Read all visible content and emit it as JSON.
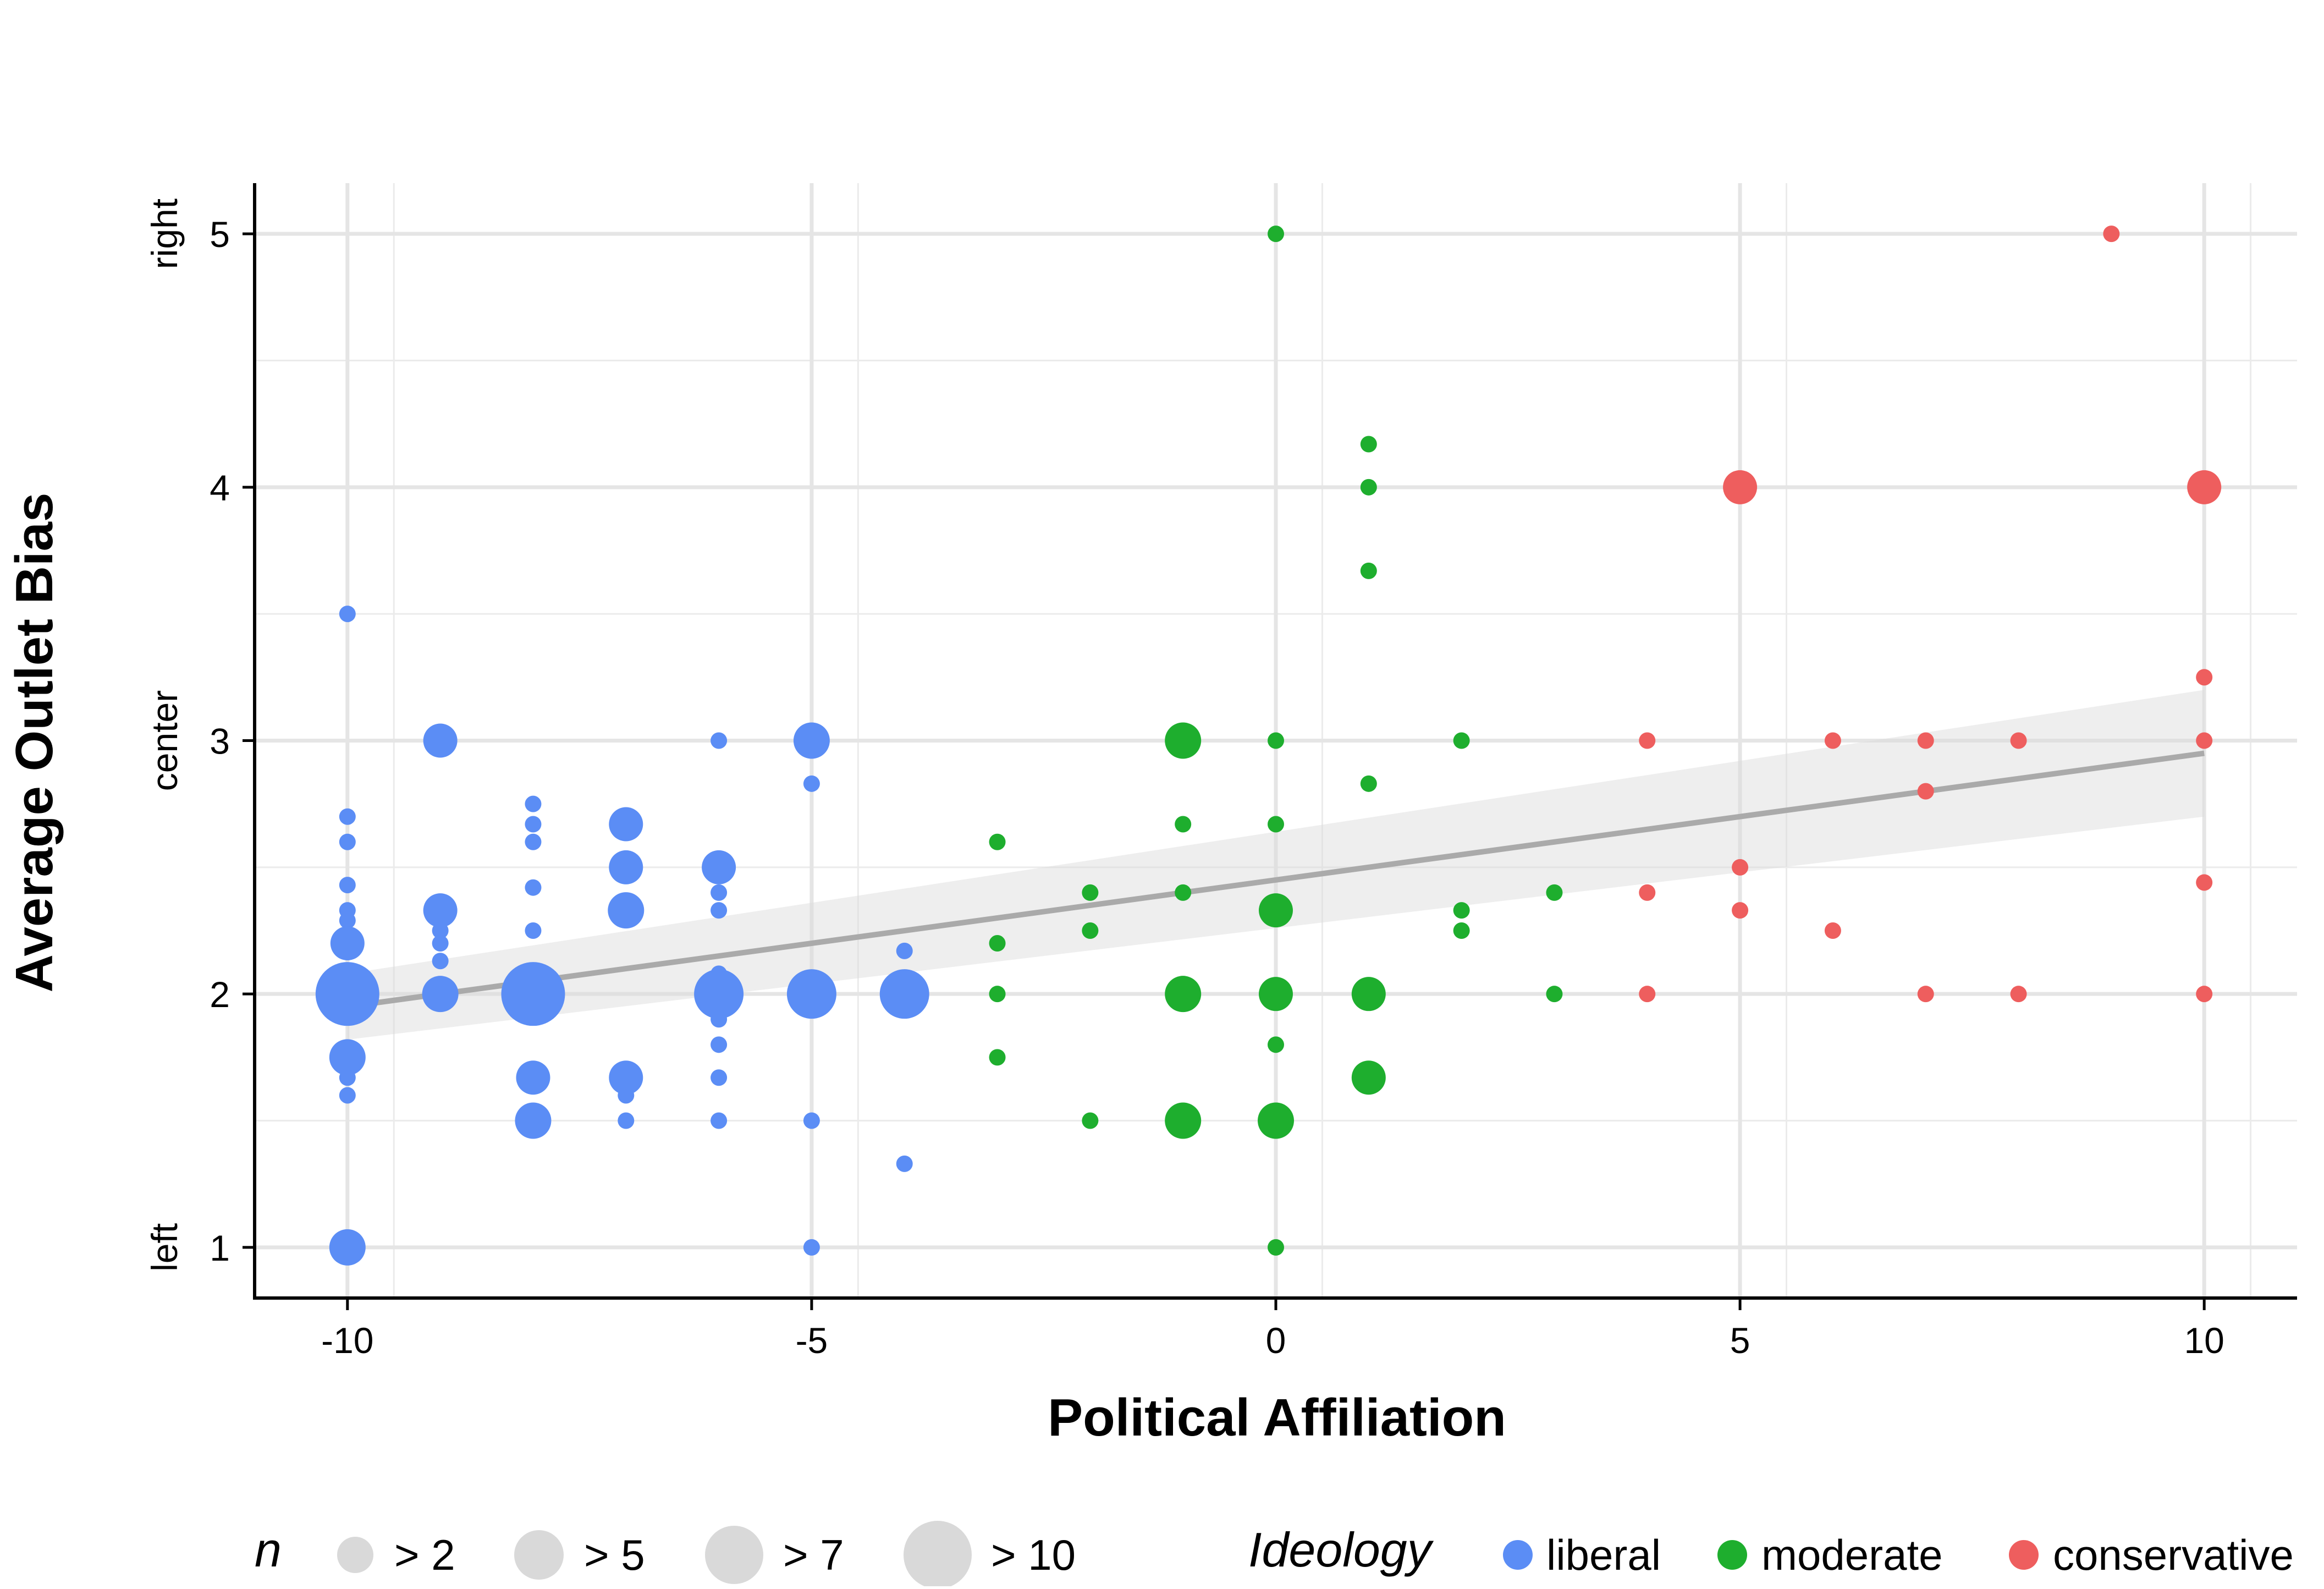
{
  "chart_data": {
    "type": "scatter",
    "xlabel": "Political Affiliation",
    "ylabel": "Average Outlet Bias",
    "xlim": [
      -11,
      11
    ],
    "ylim": [
      0.8,
      5.2
    ],
    "x_ticks": [
      -10,
      -5,
      0,
      5,
      10
    ],
    "x_tick_labels": [
      "-10",
      "-5",
      "0",
      "5",
      "10"
    ],
    "y_ticks": [
      1,
      2,
      3,
      4,
      5
    ],
    "y_tick_labels": [
      "1",
      "2",
      "3",
      "4",
      "5"
    ],
    "y_bias_labels": [
      {
        "y": 1,
        "label": "left"
      },
      {
        "y": 3,
        "label": "center"
      },
      {
        "y": 5,
        "label": "right"
      }
    ],
    "grid": true,
    "legend_position": "bottom",
    "size_legend": {
      "title": "n",
      "entries": [
        {
          "label": "> 2",
          "n": 3
        },
        {
          "label": "> 5",
          "n": 6
        },
        {
          "label": "> 7",
          "n": 8
        },
        {
          "label": "> 10",
          "n": 11
        }
      ]
    },
    "color_legend": {
      "title": "Ideology",
      "entries": [
        {
          "label": "liberal",
          "color": "#5B8DF5"
        },
        {
          "label": "moderate",
          "color": "#1EAE2E"
        },
        {
          "label": "conservative",
          "color": "#EE5E5E"
        }
      ]
    },
    "trend_line": {
      "x": [
        -10,
        10
      ],
      "y": [
        1.95,
        2.95
      ],
      "ci_lower": [
        1.82,
        2.7
      ],
      "ci_upper": [
        2.08,
        3.2
      ],
      "color": "#AAAAAA"
    },
    "series": [
      {
        "name": "liberal",
        "color": "#5B8DF5",
        "points": [
          {
            "x": -10,
            "y": 3.5,
            "n": 1
          },
          {
            "x": -10,
            "y": 2.7,
            "n": 1
          },
          {
            "x": -10,
            "y": 2.6,
            "n": 1
          },
          {
            "x": -10,
            "y": 2.43,
            "n": 1
          },
          {
            "x": -10,
            "y": 2.33,
            "n": 1
          },
          {
            "x": -10,
            "y": 2.29,
            "n": 1
          },
          {
            "x": -10,
            "y": 2.2,
            "n": 3
          },
          {
            "x": -10,
            "y": 2,
            "n": 11
          },
          {
            "x": -10,
            "y": 1.75,
            "n": 4
          },
          {
            "x": -10,
            "y": 1.67,
            "n": 1
          },
          {
            "x": -10,
            "y": 1.6,
            "n": 1
          },
          {
            "x": -10,
            "y": 1,
            "n": 4
          },
          {
            "x": -9,
            "y": 3,
            "n": 3
          },
          {
            "x": -9,
            "y": 2.33,
            "n": 3
          },
          {
            "x": -9,
            "y": 2.25,
            "n": 1
          },
          {
            "x": -9,
            "y": 2.2,
            "n": 1
          },
          {
            "x": -9,
            "y": 2.13,
            "n": 1
          },
          {
            "x": -9,
            "y": 2,
            "n": 4
          },
          {
            "x": -8,
            "y": 2.75,
            "n": 1
          },
          {
            "x": -8,
            "y": 2.67,
            "n": 1
          },
          {
            "x": -8,
            "y": 2.6,
            "n": 1
          },
          {
            "x": -8,
            "y": 2.42,
            "n": 1
          },
          {
            "x": -8,
            "y": 2.25,
            "n": 1
          },
          {
            "x": -8,
            "y": 2,
            "n": 11
          },
          {
            "x": -8,
            "y": 1.67,
            "n": 3
          },
          {
            "x": -8,
            "y": 1.5,
            "n": 4
          },
          {
            "x": -7,
            "y": 2.67,
            "n": 3
          },
          {
            "x": -7,
            "y": 2.5,
            "n": 3
          },
          {
            "x": -7,
            "y": 2.33,
            "n": 4
          },
          {
            "x": -7,
            "y": 1.67,
            "n": 3
          },
          {
            "x": -7,
            "y": 1.6,
            "n": 1
          },
          {
            "x": -7,
            "y": 1.5,
            "n": 1
          },
          {
            "x": -6,
            "y": 3,
            "n": 1
          },
          {
            "x": -6,
            "y": 2.5,
            "n": 3
          },
          {
            "x": -6,
            "y": 2.4,
            "n": 1
          },
          {
            "x": -6,
            "y": 2.33,
            "n": 1
          },
          {
            "x": -6,
            "y": 2.08,
            "n": 1
          },
          {
            "x": -6,
            "y": 2,
            "n": 6
          },
          {
            "x": -6,
            "y": 1.9,
            "n": 1
          },
          {
            "x": -6,
            "y": 1.8,
            "n": 1
          },
          {
            "x": -6,
            "y": 1.67,
            "n": 1
          },
          {
            "x": -6,
            "y": 1.5,
            "n": 1
          },
          {
            "x": -5,
            "y": 3,
            "n": 4
          },
          {
            "x": -5,
            "y": 2.83,
            "n": 1
          },
          {
            "x": -5,
            "y": 2,
            "n": 6
          },
          {
            "x": -5,
            "y": 1.5,
            "n": 1
          },
          {
            "x": -5,
            "y": 1,
            "n": 1
          },
          {
            "x": -4,
            "y": 2.17,
            "n": 1
          },
          {
            "x": -4,
            "y": 2,
            "n": 6
          },
          {
            "x": -4,
            "y": 1.33,
            "n": 1
          }
        ]
      },
      {
        "name": "moderate",
        "color": "#1EAE2E",
        "points": [
          {
            "x": -3,
            "y": 2.6,
            "n": 1
          },
          {
            "x": -3,
            "y": 2.2,
            "n": 1
          },
          {
            "x": -3,
            "y": 2,
            "n": 1
          },
          {
            "x": -3,
            "y": 1.75,
            "n": 1
          },
          {
            "x": -2,
            "y": 2.4,
            "n": 1
          },
          {
            "x": -2,
            "y": 2.25,
            "n": 1
          },
          {
            "x": -2,
            "y": 1.5,
            "n": 1
          },
          {
            "x": -1,
            "y": 3,
            "n": 4
          },
          {
            "x": -1,
            "y": 2.67,
            "n": 1
          },
          {
            "x": -1,
            "y": 2.4,
            "n": 1
          },
          {
            "x": -1,
            "y": 2,
            "n": 4
          },
          {
            "x": -1,
            "y": 1.5,
            "n": 4
          },
          {
            "x": 0,
            "y": 5,
            "n": 1
          },
          {
            "x": 0,
            "y": 3,
            "n": 1
          },
          {
            "x": 0,
            "y": 2.67,
            "n": 1
          },
          {
            "x": 0,
            "y": 2.33,
            "n": 3
          },
          {
            "x": 0,
            "y": 2,
            "n": 3
          },
          {
            "x": 0,
            "y": 1.8,
            "n": 1
          },
          {
            "x": 0,
            "y": 1.5,
            "n": 4
          },
          {
            "x": 0,
            "y": 1,
            "n": 1
          },
          {
            "x": 1,
            "y": 4.17,
            "n": 1
          },
          {
            "x": 1,
            "y": 4,
            "n": 1
          },
          {
            "x": 1,
            "y": 3.67,
            "n": 1
          },
          {
            "x": 1,
            "y": 2.83,
            "n": 1
          },
          {
            "x": 1,
            "y": 2,
            "n": 3
          },
          {
            "x": 1,
            "y": 1.67,
            "n": 3
          },
          {
            "x": 2,
            "y": 3,
            "n": 1
          },
          {
            "x": 2,
            "y": 2.33,
            "n": 1
          },
          {
            "x": 2,
            "y": 2.25,
            "n": 1
          },
          {
            "x": 3,
            "y": 2.4,
            "n": 1
          },
          {
            "x": 3,
            "y": 2,
            "n": 1
          }
        ]
      },
      {
        "name": "conservative",
        "color": "#EE5E5E",
        "points": [
          {
            "x": 4,
            "y": 3,
            "n": 1
          },
          {
            "x": 4,
            "y": 2.4,
            "n": 1
          },
          {
            "x": 4,
            "y": 2,
            "n": 1
          },
          {
            "x": 5,
            "y": 4,
            "n": 3
          },
          {
            "x": 5,
            "y": 2.5,
            "n": 1
          },
          {
            "x": 5,
            "y": 2.33,
            "n": 1
          },
          {
            "x": 6,
            "y": 3,
            "n": 1
          },
          {
            "x": 6,
            "y": 2.25,
            "n": 1
          },
          {
            "x": 7,
            "y": 3,
            "n": 1
          },
          {
            "x": 7,
            "y": 2.8,
            "n": 1
          },
          {
            "x": 7,
            "y": 2,
            "n": 1
          },
          {
            "x": 8,
            "y": 3,
            "n": 1
          },
          {
            "x": 8,
            "y": 2,
            "n": 1
          },
          {
            "x": 9,
            "y": 5,
            "n": 1
          },
          {
            "x": 10,
            "y": 4,
            "n": 3
          },
          {
            "x": 10,
            "y": 3.25,
            "n": 1
          },
          {
            "x": 10,
            "y": 3,
            "n": 1
          },
          {
            "x": 10,
            "y": 2.44,
            "n": 1
          },
          {
            "x": 10,
            "y": 2,
            "n": 1
          }
        ]
      }
    ]
  }
}
